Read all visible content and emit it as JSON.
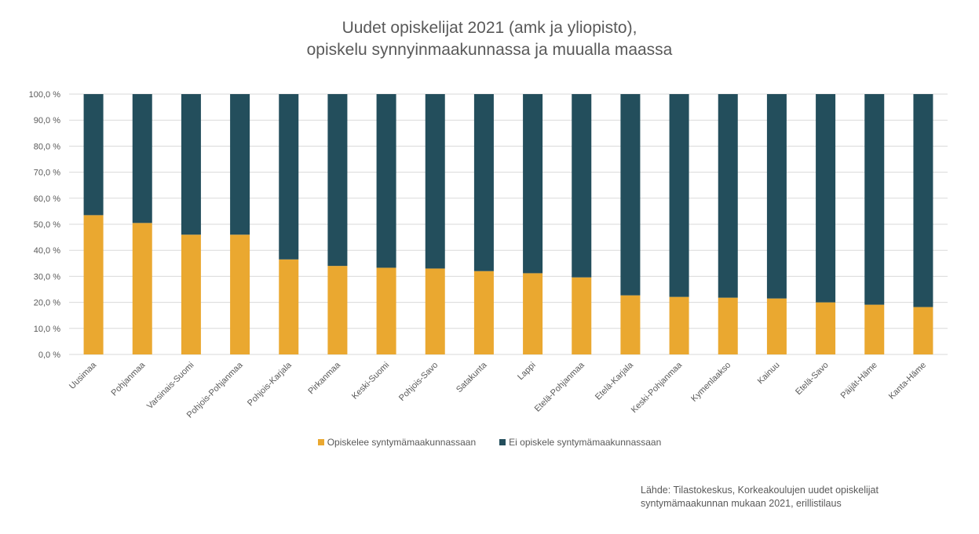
{
  "title_line1": "Uudet opiskelijat 2021 (amk ja yliopisto),",
  "title_line2": "opiskelu synnyinmaakunnassa ja muualla maassa",
  "source_line1": "Lähde: Tilastokeskus, Korkeakoulujen uudet opiskelijat",
  "source_line2": "syntymämaakunnan mukaan 2021, erillistilaus",
  "colors": {
    "opiskelee": "#EAA830",
    "ei_opiskele": "#234E5C",
    "grid": "#D9D9D9"
  },
  "chart_data": {
    "type": "bar",
    "stacked": true,
    "title": "Uudet opiskelijat 2021 (amk ja yliopisto), opiskelu synnyinmaakunnassa ja muualla maassa",
    "xlabel": "",
    "ylabel": "",
    "ylim": [
      0,
      100
    ],
    "yticks": [
      "0,0 %",
      "10,0 %",
      "20,0 %",
      "30,0 %",
      "40,0 %",
      "50,0 %",
      "60,0 %",
      "70,0 %",
      "80,0 %",
      "90,0 %",
      "100,0 %"
    ],
    "grid": true,
    "legend_position": "bottom",
    "categories": [
      "Uusimaa",
      "Pohjanmaa",
      "Varsinais-Suomi",
      "Pohjois-Pohjanmaa",
      "Pohjois-Karjala",
      "Pirkanmaa",
      "Keski-Suomi",
      "Pohjois-Savo",
      "Satakunta",
      "Lappi",
      "Etelä-Pohjanmaa",
      "Etelä-Karjala",
      "Keski-Pohjanmaa",
      "Kymenlaakso",
      "Kainuu",
      "Etelä-Savo",
      "Päijät-Häme",
      "Kanta-Häme"
    ],
    "series": [
      {
        "name": "Opiskelee syntymämaakunnassaan",
        "values": [
          53.5,
          50.5,
          46.0,
          46.0,
          36.5,
          34.0,
          33.3,
          33.0,
          32.0,
          31.2,
          29.6,
          22.7,
          22.1,
          21.8,
          21.5,
          20.0,
          19.1,
          18.2
        ]
      },
      {
        "name": "Ei opiskele syntymämaakunnassaan",
        "values": [
          46.5,
          49.5,
          54.0,
          54.0,
          63.5,
          66.0,
          66.7,
          67.0,
          68.0,
          68.8,
          70.4,
          77.3,
          77.9,
          78.2,
          78.5,
          80.0,
          80.9,
          81.8
        ]
      }
    ]
  }
}
